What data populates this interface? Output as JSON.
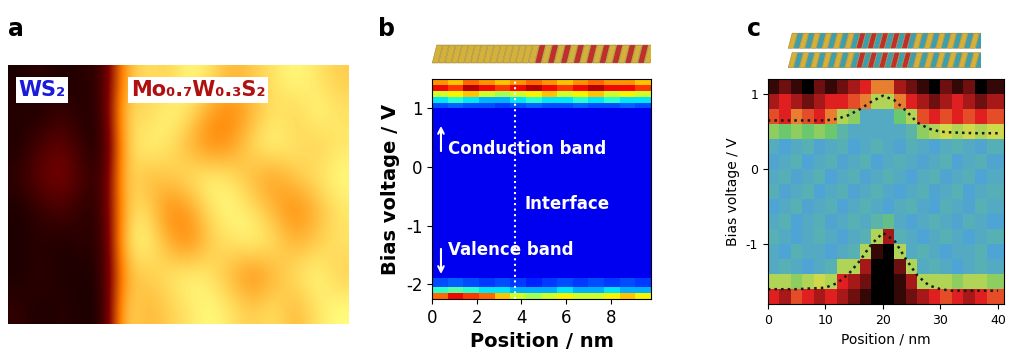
{
  "chart_data": [
    {
      "type": "image",
      "panel_label": "a",
      "tick_labels": false,
      "labels": [
        "WS₂",
        "Mo₀.₇W₀.₃S₂"
      ],
      "value_range": [
        0,
        1
      ],
      "cells": [
        [
          0.05,
          0.1,
          0.05,
          0.08,
          0.1,
          0.6,
          0.7,
          0.65,
          0.75,
          0.7,
          0.6,
          0.65,
          0.7,
          0.75,
          0.7,
          0.65
        ],
        [
          0.08,
          0.05,
          0.12,
          0.06,
          0.1,
          0.7,
          0.65,
          0.75,
          0.7,
          0.55,
          0.5,
          0.6,
          0.7,
          0.65,
          0.75,
          0.7
        ],
        [
          0.05,
          0.15,
          0.2,
          0.1,
          0.05,
          0.65,
          0.75,
          0.7,
          0.6,
          0.5,
          0.55,
          0.7,
          0.75,
          0.7,
          0.65,
          0.7
        ],
        [
          0.1,
          0.2,
          0.25,
          0.15,
          0.08,
          0.7,
          0.6,
          0.65,
          0.7,
          0.75,
          0.7,
          0.6,
          0.55,
          0.65,
          0.7,
          0.75
        ],
        [
          0.05,
          0.1,
          0.15,
          0.08,
          0.1,
          0.65,
          0.7,
          0.5,
          0.55,
          0.7,
          0.75,
          0.7,
          0.6,
          0.5,
          0.6,
          0.7
        ],
        [
          0.06,
          0.08,
          0.05,
          0.1,
          0.06,
          0.7,
          0.75,
          0.6,
          0.5,
          0.65,
          0.7,
          0.75,
          0.7,
          0.6,
          0.65,
          0.7
        ],
        [
          0.05,
          0.1,
          0.06,
          0.05,
          0.08,
          0.6,
          0.65,
          0.7,
          0.75,
          0.7,
          0.6,
          0.5,
          0.6,
          0.7,
          0.75,
          0.65
        ],
        [
          0.1,
          0.05,
          0.08,
          0.06,
          0.05,
          0.7,
          0.6,
          0.65,
          0.7,
          0.75,
          0.7,
          0.65,
          0.7,
          0.6,
          0.7,
          0.75
        ]
      ]
    },
    {
      "type": "heatmap",
      "panel_label": "b",
      "x_label": "Position / nm",
      "y_label": "Bias voltage / V",
      "annotations": [
        "Conduction band",
        "Interface",
        "Valence band"
      ],
      "interface_x": 3.7,
      "xlim": [
        0,
        9.8
      ],
      "xticks": [
        0,
        2,
        4,
        6,
        8
      ],
      "ylim": [
        -2.25,
        1.5
      ],
      "yticks": [
        -2,
        -1,
        0,
        1
      ],
      "value_range": [
        0,
        1
      ],
      "x_edges": [
        0,
        0.7,
        1.4,
        2.1,
        2.8,
        3.5,
        4.2,
        4.9,
        5.6,
        6.3,
        7.0,
        7.7,
        8.4,
        9.1,
        9.8
      ],
      "y_edges": [
        -2.25,
        -2.15,
        -2.05,
        -1.9,
        1.0,
        1.1,
        1.2,
        1.3,
        1.4,
        1.5
      ],
      "cells": [
        [
          0.8,
          0.9,
          0.85,
          0.8,
          0.7,
          0.6,
          0.55,
          0.6,
          0.65,
          0.6,
          0.6,
          0.65,
          0.7,
          0.65
        ],
        [
          0.4,
          0.45,
          0.4,
          0.35,
          0.35,
          0.3,
          0.3,
          0.3,
          0.35,
          0.3,
          0.3,
          0.35,
          0.3,
          0.3
        ],
        [
          0.2,
          0.22,
          0.2,
          0.18,
          0.2,
          0.18,
          0.16,
          0.18,
          0.2,
          0.18,
          0.2,
          0.18,
          0.2,
          0.18
        ],
        [
          0.1,
          0.1,
          0.1,
          0.1,
          0.1,
          0.1,
          0.1,
          0.1,
          0.1,
          0.1,
          0.1,
          0.1,
          0.1,
          0.1
        ],
        [
          0.2,
          0.22,
          0.2,
          0.2,
          0.18,
          0.2,
          0.22,
          0.2,
          0.2,
          0.22,
          0.2,
          0.2,
          0.22,
          0.2
        ],
        [
          0.35,
          0.4,
          0.35,
          0.3,
          0.3,
          0.35,
          0.4,
          0.35,
          0.35,
          0.4,
          0.35,
          0.4,
          0.35,
          0.35
        ],
        [
          0.6,
          0.65,
          0.7,
          0.6,
          0.55,
          0.6,
          0.65,
          0.7,
          0.6,
          0.65,
          0.7,
          0.6,
          0.65,
          0.6
        ],
        [
          0.9,
          0.85,
          0.95,
          0.9,
          0.85,
          0.9,
          0.95,
          0.9,
          0.85,
          0.9,
          0.95,
          0.9,
          0.9,
          0.85
        ],
        [
          0.75,
          0.7,
          0.8,
          0.75,
          0.7,
          0.75,
          0.8,
          0.75,
          0.7,
          0.75,
          0.8,
          0.75,
          0.75,
          0.7
        ]
      ]
    },
    {
      "type": "heatmap",
      "panel_label": "c",
      "x_label": "Position / nm",
      "y_label": "Bias voltage / V",
      "xlim": [
        0,
        41
      ],
      "xticks": [
        0,
        10,
        20,
        30,
        40
      ],
      "ylim": [
        -1.8,
        1.2
      ],
      "yticks": [
        -1,
        0,
        1
      ],
      "value_range": [
        0,
        1
      ],
      "x_edges": [
        0,
        2,
        4,
        6,
        8,
        10,
        12,
        14,
        16,
        18,
        20,
        22,
        24,
        26,
        28,
        30,
        32,
        34,
        36,
        38,
        41
      ],
      "y_edges": [
        -1.8,
        -1.6,
        -1.4,
        -1.2,
        -1.0,
        -0.8,
        -0.6,
        -0.4,
        -0.2,
        0.0,
        0.2,
        0.4,
        0.6,
        0.8,
        1.0,
        1.2
      ],
      "cells": [
        [
          0.8,
          0.85,
          0.75,
          0.8,
          0.85,
          0.8,
          0.85,
          0.9,
          0.95,
          1.0,
          1.0,
          0.95,
          0.9,
          0.85,
          0.8,
          0.75,
          0.8,
          0.85,
          0.8,
          0.75
        ],
        [
          0.5,
          0.5,
          0.45,
          0.5,
          0.55,
          0.5,
          0.8,
          0.85,
          0.9,
          1.0,
          1.0,
          0.95,
          0.85,
          0.5,
          0.5,
          0.5,
          0.45,
          0.5,
          0.5,
          0.45
        ],
        [
          0.25,
          0.28,
          0.25,
          0.22,
          0.25,
          0.28,
          0.5,
          0.5,
          0.85,
          1.0,
          1.0,
          0.9,
          0.5,
          0.25,
          0.28,
          0.25,
          0.22,
          0.25,
          0.28,
          0.25
        ],
        [
          0.25,
          0.22,
          0.28,
          0.25,
          0.25,
          0.22,
          0.25,
          0.28,
          0.5,
          0.95,
          1.0,
          0.5,
          0.25,
          0.28,
          0.25,
          0.22,
          0.25,
          0.25,
          0.28,
          0.22
        ],
        [
          0.28,
          0.25,
          0.22,
          0.25,
          0.28,
          0.25,
          0.22,
          0.25,
          0.28,
          0.5,
          0.85,
          0.28,
          0.25,
          0.22,
          0.25,
          0.28,
          0.25,
          0.22,
          0.25,
          0.28
        ],
        [
          0.25,
          0.28,
          0.22,
          0.25,
          0.27,
          0.23,
          0.25,
          0.28,
          0.25,
          0.3,
          0.35,
          0.25,
          0.22,
          0.25,
          0.28,
          0.25,
          0.23,
          0.27,
          0.25,
          0.22
        ],
        [
          0.22,
          0.25,
          0.28,
          0.23,
          0.25,
          0.27,
          0.22,
          0.25,
          0.28,
          0.25,
          0.22,
          0.26,
          0.28,
          0.24,
          0.22,
          0.27,
          0.25,
          0.23,
          0.28,
          0.25
        ],
        [
          0.27,
          0.23,
          0.25,
          0.28,
          0.22,
          0.25,
          0.27,
          0.23,
          0.25,
          0.28,
          0.24,
          0.22,
          0.25,
          0.27,
          0.23,
          0.25,
          0.28,
          0.22,
          0.25,
          0.27
        ],
        [
          0.25,
          0.27,
          0.23,
          0.25,
          0.28,
          0.22,
          0.25,
          0.27,
          0.23,
          0.25,
          0.28,
          0.25,
          0.22,
          0.26,
          0.28,
          0.23,
          0.25,
          0.27,
          0.22,
          0.25
        ],
        [
          0.23,
          0.25,
          0.28,
          0.22,
          0.25,
          0.27,
          0.23,
          0.25,
          0.28,
          0.22,
          0.25,
          0.27,
          0.25,
          0.23,
          0.25,
          0.28,
          0.22,
          0.25,
          0.27,
          0.23
        ],
        [
          0.26,
          0.22,
          0.25,
          0.28,
          0.23,
          0.25,
          0.27,
          0.22,
          0.25,
          0.28,
          0.25,
          0.23,
          0.27,
          0.25,
          0.22,
          0.26,
          0.28,
          0.25,
          0.23,
          0.27
        ],
        [
          0.45,
          0.4,
          0.45,
          0.4,
          0.45,
          0.4,
          0.3,
          0.25,
          0.25,
          0.25,
          0.25,
          0.25,
          0.3,
          0.45,
          0.5,
          0.55,
          0.5,
          0.55,
          0.5,
          0.55
        ],
        [
          0.75,
          0.8,
          0.7,
          0.75,
          0.8,
          0.7,
          0.5,
          0.45,
          0.25,
          0.25,
          0.25,
          0.4,
          0.5,
          0.75,
          0.8,
          0.75,
          0.8,
          0.75,
          0.8,
          0.75
        ],
        [
          0.85,
          0.8,
          0.85,
          0.9,
          0.85,
          0.8,
          0.8,
          0.75,
          0.7,
          0.5,
          0.5,
          0.7,
          0.8,
          0.85,
          0.9,
          0.85,
          0.8,
          0.85,
          0.9,
          0.85
        ],
        [
          0.95,
          0.9,
          0.95,
          1.0,
          0.9,
          0.95,
          0.9,
          0.85,
          0.8,
          0.7,
          0.7,
          0.85,
          0.9,
          0.95,
          1.0,
          0.9,
          0.95,
          0.9,
          1.0,
          0.95
        ]
      ],
      "band_edges": [
        {
          "x": [
            0,
            5,
            10,
            12,
            14,
            16,
            18,
            20,
            22,
            24,
            26,
            28,
            30,
            32,
            36,
            40
          ],
          "values": [
            0.65,
            0.65,
            0.65,
            0.67,
            0.72,
            0.8,
            0.9,
            0.98,
            0.92,
            0.78,
            0.62,
            0.54,
            0.5,
            0.49,
            0.48,
            0.48
          ],
          "line_style": "dotted",
          "color": "#1a1a1a"
        },
        {
          "x": [
            0,
            5,
            10,
            12,
            14,
            16,
            18,
            20,
            22,
            24,
            26,
            28,
            30,
            32,
            36,
            40
          ],
          "values": [
            -1.6,
            -1.6,
            -1.58,
            -1.52,
            -1.4,
            -1.22,
            -1.0,
            -0.85,
            -0.95,
            -1.2,
            -1.42,
            -1.55,
            -1.6,
            -1.62,
            -1.62,
            -1.62
          ],
          "line_style": "dotted",
          "color": "#1a1a1a"
        }
      ]
    }
  ]
}
